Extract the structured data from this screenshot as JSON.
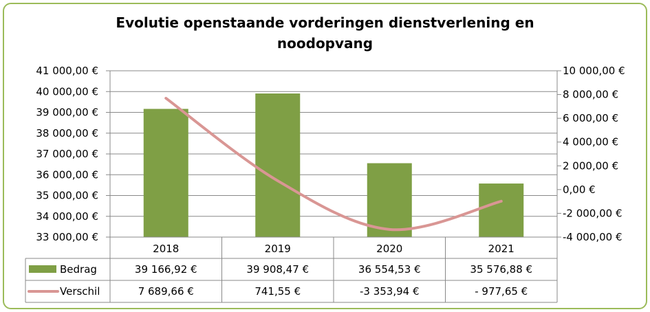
{
  "chart_data": {
    "type": "bar",
    "title": "Evolutie openstaande vorderingen dienstverlening en noodopvang",
    "categories": [
      "2018",
      "2019",
      "2020",
      "2021"
    ],
    "series": [
      {
        "name": "Bedrag",
        "type": "bar",
        "axis": "left",
        "values": [
          39166.92,
          39908.47,
          36554.53,
          35576.88
        ],
        "labels": [
          "39 166,92 €",
          "39 908,47 €",
          "36 554,53 €",
          "35 576,88 €"
        ],
        "color": "#7f9f45"
      },
      {
        "name": "Verschil",
        "type": "line",
        "smooth": true,
        "axis": "right",
        "values": [
          7689.66,
          741.55,
          -3353.94,
          -977.65
        ],
        "labels": [
          "7 689,66 €",
          "741,55 €",
          "-3 353,94 €",
          "- 977,65 €"
        ],
        "color": "#d99694"
      }
    ],
    "y_left": {
      "range": [
        33000,
        41000
      ],
      "ticks": [
        33000,
        34000,
        35000,
        36000,
        37000,
        38000,
        39000,
        40000,
        41000
      ],
      "tick_labels": [
        "33 000,00 €",
        "34 000,00 €",
        "35 000,00 €",
        "36 000,00 €",
        "37 000,00 €",
        "38 000,00 €",
        "39 000,00 €",
        "40 000,00 €",
        "41 000,00 €"
      ]
    },
    "y_right": {
      "range": [
        -4000,
        10000
      ],
      "ticks": [
        -4000,
        -2000,
        0,
        2000,
        4000,
        6000,
        8000,
        10000
      ],
      "tick_labels": [
        "-4 000,00 €",
        "-2 000,00 €",
        "0,00 €",
        "2 000,00 €",
        "4 000,00 €",
        "6 000,00 €",
        "8 000,00 €",
        "10 000,00 €"
      ]
    },
    "grid": true,
    "legend": "data-table-below"
  },
  "colors": {
    "border": "#9bbb59",
    "gridline": "#888888",
    "axis": "#888888"
  }
}
